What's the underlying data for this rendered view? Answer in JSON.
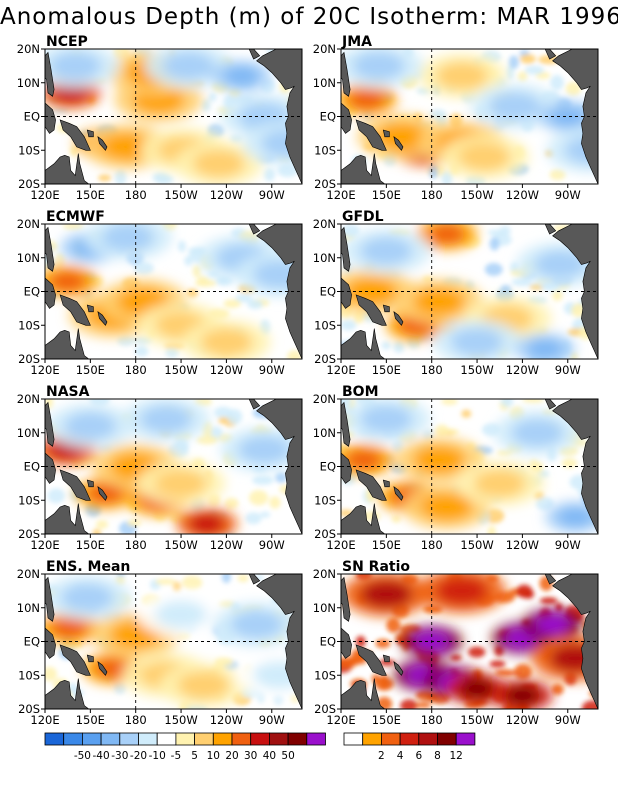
{
  "title": "Anomalous Depth (m) of 20C Isotherm: MAR 1996",
  "colors": {
    "land": "#585858",
    "missing": "#ffffff",
    "grid_line": "#000000"
  },
  "chart_data": [
    {
      "type": "heatmap",
      "title": "NCEP",
      "xlabel": "",
      "ylabel": "",
      "x_ticks": [
        "120E",
        "150E",
        "180",
        "150W",
        "120W",
        "90W"
      ],
      "y_ticks": [
        "20N",
        "10N",
        "EQ",
        "10S",
        "20S"
      ],
      "x_range": [
        "120E",
        "70W"
      ],
      "y_range": [
        "20S",
        "20N"
      ],
      "units": "m",
      "grid": "dashed lines at 180 and EQ",
      "features": [
        {
          "lon": 137,
          "lat": 7,
          "value": 40
        },
        {
          "lon": 160,
          "lat": -8,
          "value": 30
        },
        {
          "lon": 175,
          "lat": -9,
          "value": 20
        },
        {
          "lon": 195,
          "lat": 5,
          "value": 20
        },
        {
          "lon": 190,
          "lat": 13,
          "value": 20
        },
        {
          "lon": 212,
          "lat": -10,
          "value": 10
        },
        {
          "lon": 235,
          "lat": -14,
          "value": 10
        },
        {
          "lon": 265,
          "lat": 0,
          "value": -20
        },
        {
          "lon": 215,
          "lat": 15,
          "value": -20
        },
        {
          "lon": 140,
          "lat": 15,
          "value": -20
        },
        {
          "lon": 250,
          "lat": 12,
          "value": -30
        },
        {
          "lon": 280,
          "lat": -8,
          "value": -20
        }
      ]
    },
    {
      "type": "heatmap",
      "title": "JMA",
      "xlabel": "",
      "ylabel": "",
      "x_ticks": [
        "120E",
        "150E",
        "180",
        "150W",
        "120W",
        "90W"
      ],
      "y_ticks": [
        "20N",
        "10N",
        "EQ",
        "10S",
        "20S"
      ],
      "x_range": [
        "120E",
        "70W"
      ],
      "y_range": [
        "20S",
        "20N"
      ],
      "units": "m",
      "grid": "dashed lines at 180 and EQ",
      "features": [
        {
          "lon": 137,
          "lat": 5,
          "value": 30
        },
        {
          "lon": 175,
          "lat": -10,
          "value": 40
        },
        {
          "lon": 160,
          "lat": -6,
          "value": 20
        },
        {
          "lon": 200,
          "lat": -8,
          "value": 20
        },
        {
          "lon": 215,
          "lat": -12,
          "value": 10
        },
        {
          "lon": 200,
          "lat": 12,
          "value": 10
        },
        {
          "lon": 145,
          "lat": 15,
          "value": -20
        },
        {
          "lon": 235,
          "lat": 3,
          "value": -20
        },
        {
          "lon": 270,
          "lat": 0,
          "value": -30
        },
        {
          "lon": 285,
          "lat": -10,
          "value": -20
        }
      ]
    },
    {
      "type": "heatmap",
      "title": "ECMWF",
      "xlabel": "",
      "ylabel": "",
      "x_ticks": [
        "120E",
        "150E",
        "180",
        "150W",
        "120W",
        "90W"
      ],
      "y_ticks": [
        "20N",
        "10N",
        "EQ",
        "10S",
        "20S"
      ],
      "x_range": [
        "120E",
        "70W"
      ],
      "y_range": [
        "20S",
        "20N"
      ],
      "units": "m",
      "grid": "dashed lines at 180 and EQ",
      "features": [
        {
          "lon": 135,
          "lat": 3,
          "value": 30
        },
        {
          "lon": 165,
          "lat": -7,
          "value": 20
        },
        {
          "lon": 185,
          "lat": -3,
          "value": 20
        },
        {
          "lon": 210,
          "lat": -10,
          "value": 10
        },
        {
          "lon": 240,
          "lat": -15,
          "value": 10
        },
        {
          "lon": 150,
          "lat": 13,
          "value": -30
        },
        {
          "lon": 175,
          "lat": 16,
          "value": -20
        },
        {
          "lon": 250,
          "lat": 10,
          "value": -20
        },
        {
          "lon": 275,
          "lat": 5,
          "value": -20
        }
      ]
    },
    {
      "type": "heatmap",
      "title": "GFDL",
      "xlabel": "",
      "ylabel": "",
      "x_ticks": [
        "120E",
        "150E",
        "180",
        "150W",
        "120W",
        "90W"
      ],
      "y_ticks": [
        "20N",
        "10N",
        "EQ",
        "10S",
        "20S"
      ],
      "x_range": [
        "120E",
        "70W"
      ],
      "y_range": [
        "20S",
        "20N"
      ],
      "units": "m",
      "grid": "dashed lines at 180 and EQ",
      "features": [
        {
          "lon": 170,
          "lat": -10,
          "value": 30
        },
        {
          "lon": 190,
          "lat": 17,
          "value": 30
        },
        {
          "lon": 185,
          "lat": -3,
          "value": 20
        },
        {
          "lon": 140,
          "lat": 0,
          "value": 20
        },
        {
          "lon": 230,
          "lat": -8,
          "value": 10
        },
        {
          "lon": 150,
          "lat": 12,
          "value": -20
        },
        {
          "lon": 210,
          "lat": -15,
          "value": -20
        },
        {
          "lon": 265,
          "lat": 8,
          "value": -20
        },
        {
          "lon": 255,
          "lat": -17,
          "value": -30
        }
      ]
    },
    {
      "type": "heatmap",
      "title": "NASA",
      "xlabel": "",
      "ylabel": "",
      "x_ticks": [
        "120E",
        "150E",
        "180",
        "150W",
        "120W",
        "90W"
      ],
      "y_ticks": [
        "20N",
        "10N",
        "EQ",
        "10S",
        "20S"
      ],
      "x_range": [
        "120E",
        "70W"
      ],
      "y_range": [
        "20S",
        "20N"
      ],
      "units": "m",
      "grid": "dashed lines at 180 and EQ",
      "features": [
        {
          "lon": 134,
          "lat": 5,
          "value": 40
        },
        {
          "lon": 160,
          "lat": -8,
          "value": 30
        },
        {
          "lon": 195,
          "lat": -10,
          "value": 30
        },
        {
          "lon": 180,
          "lat": 0,
          "value": 20
        },
        {
          "lon": 227,
          "lat": -17,
          "value": 40
        },
        {
          "lon": 210,
          "lat": -5,
          "value": 10
        },
        {
          "lon": 150,
          "lat": 12,
          "value": -20
        },
        {
          "lon": 200,
          "lat": 14,
          "value": -20
        },
        {
          "lon": 265,
          "lat": 5,
          "value": -20
        }
      ]
    },
    {
      "type": "heatmap",
      "title": "BOM",
      "xlabel": "",
      "ylabel": "",
      "x_ticks": [
        "120E",
        "150E",
        "180",
        "150W",
        "120W",
        "90W"
      ],
      "y_ticks": [
        "20N",
        "10N",
        "EQ",
        "10S",
        "20S"
      ],
      "x_range": [
        "120E",
        "70W"
      ],
      "y_range": [
        "20S",
        "20N"
      ],
      "units": "m",
      "grid": "dashed lines at 180 and EQ",
      "features": [
        {
          "lon": 135,
          "lat": 2,
          "value": 30
        },
        {
          "lon": 165,
          "lat": -9,
          "value": 30
        },
        {
          "lon": 185,
          "lat": 2,
          "value": 20
        },
        {
          "lon": 190,
          "lat": -12,
          "value": 20
        },
        {
          "lon": 225,
          "lat": -5,
          "value": 10
        },
        {
          "lon": 150,
          "lat": 14,
          "value": -20
        },
        {
          "lon": 250,
          "lat": 10,
          "value": -20
        },
        {
          "lon": 275,
          "lat": -15,
          "value": -30
        }
      ]
    },
    {
      "type": "heatmap",
      "title": "ENS. Mean",
      "xlabel": "",
      "ylabel": "",
      "x_ticks": [
        "120E",
        "150E",
        "180",
        "150W",
        "120W",
        "90W"
      ],
      "y_ticks": [
        "20N",
        "10N",
        "EQ",
        "10S",
        "20S"
      ],
      "x_range": [
        "120E",
        "70W"
      ],
      "y_range": [
        "20S",
        "20N"
      ],
      "units": "m",
      "grid": "dashed lines at 180 and EQ",
      "features": [
        {
          "lon": 136,
          "lat": 4,
          "value": 30
        },
        {
          "lon": 165,
          "lat": -8,
          "value": 30
        },
        {
          "lon": 180,
          "lat": 2,
          "value": 20
        },
        {
          "lon": 200,
          "lat": -10,
          "value": 10
        },
        {
          "lon": 225,
          "lat": -13,
          "value": 10
        },
        {
          "lon": 148,
          "lat": 13,
          "value": -20
        },
        {
          "lon": 210,
          "lat": 8,
          "value": -10
        },
        {
          "lon": 260,
          "lat": 5,
          "value": -20
        },
        {
          "lon": 275,
          "lat": -10,
          "value": -10
        }
      ]
    },
    {
      "type": "heatmap",
      "title": "SN Ratio",
      "xlabel": "",
      "ylabel": "",
      "x_ticks": [
        "120E",
        "150E",
        "180",
        "150W",
        "120W",
        "90W"
      ],
      "y_ticks": [
        "20N",
        "10N",
        "EQ",
        "10S",
        "20S"
      ],
      "x_range": [
        "120E",
        "70W"
      ],
      "y_range": [
        "20S",
        "20N"
      ],
      "units": "",
      "grid": "dashed lines at 180 and EQ",
      "features": [
        {
          "lon": 180,
          "lat": 0,
          "value": 12
        },
        {
          "lon": 175,
          "lat": -10,
          "value": 12
        },
        {
          "lon": 195,
          "lat": -12,
          "value": 12
        },
        {
          "lon": 240,
          "lat": 1,
          "value": 12
        },
        {
          "lon": 260,
          "lat": 5,
          "value": 12
        },
        {
          "lon": 210,
          "lat": -14,
          "value": 8
        },
        {
          "lon": 150,
          "lat": 14,
          "value": 6
        },
        {
          "lon": 240,
          "lat": -16,
          "value": 8
        },
        {
          "lon": 275,
          "lat": -5,
          "value": 6
        },
        {
          "lon": 200,
          "lat": 15,
          "value": 4
        }
      ]
    }
  ],
  "legends": [
    {
      "name": "anomaly",
      "colors": [
        "#1a66d8",
        "#3a88e8",
        "#5aa0f0",
        "#80b8f4",
        "#a8d0f8",
        "#d0ecfb",
        "#ffffff",
        "#fff2b0",
        "#ffcf70",
        "#ffa300",
        "#f06010",
        "#c81010",
        "#a01010",
        "#800000",
        "#9a10cc"
      ],
      "labels": [
        "-50",
        "-40",
        "-30",
        "-20",
        "-10",
        "-5",
        "5",
        "10",
        "20",
        "30",
        "40",
        "50"
      ]
    },
    {
      "name": "sn-ratio",
      "colors": [
        "#ffffff",
        "#ffa300",
        "#f06010",
        "#d02010",
        "#b01010",
        "#800000",
        "#9a10cc"
      ],
      "labels": [
        "2",
        "4",
        "6",
        "8",
        "12"
      ]
    }
  ]
}
